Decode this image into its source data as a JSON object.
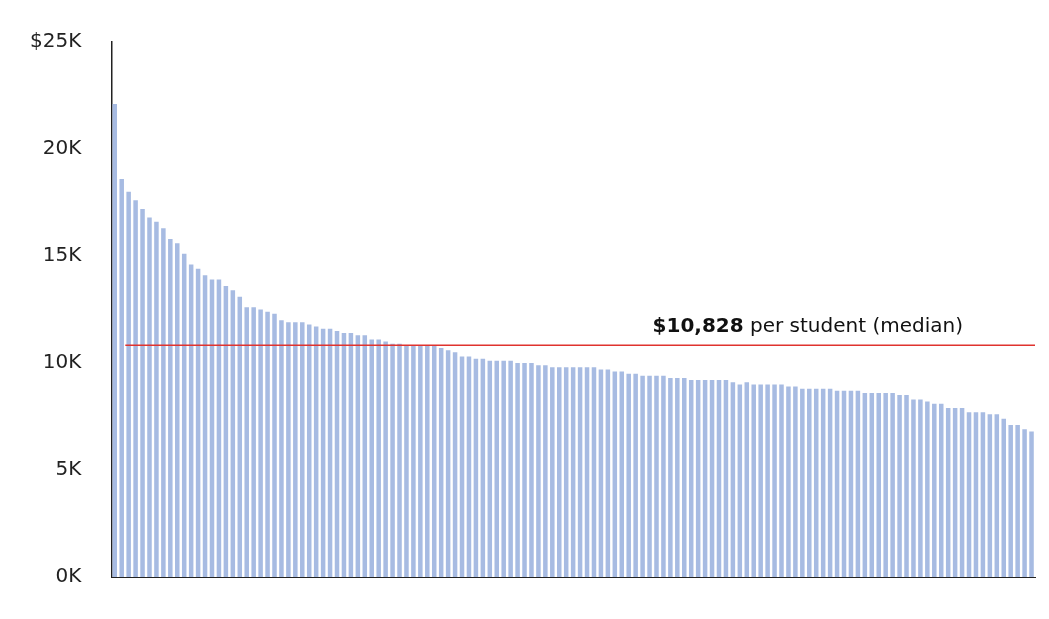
{
  "chart_data": {
    "type": "bar",
    "categories": [
      null,
      null,
      null,
      null,
      null,
      null,
      null,
      null,
      null,
      null,
      null,
      null,
      null,
      null,
      null,
      null,
      null,
      null,
      null,
      null,
      null,
      null,
      null,
      null,
      null,
      null,
      null,
      null,
      null,
      null,
      null,
      null,
      null,
      null,
      null,
      null,
      null,
      null,
      null,
      null,
      null,
      null,
      null,
      null,
      null,
      null,
      null,
      null,
      null,
      null,
      null,
      null,
      null,
      null,
      null,
      null,
      null,
      null,
      null,
      null,
      null,
      null,
      null,
      null,
      null,
      null,
      null,
      null,
      null,
      null,
      null,
      null,
      null,
      null,
      null,
      null,
      null,
      null,
      null,
      null,
      null,
      null,
      null,
      null,
      null,
      null,
      null,
      null,
      null,
      null,
      null,
      null,
      null,
      null,
      null,
      null,
      null,
      null,
      null,
      null,
      null,
      null,
      null,
      null,
      null,
      null,
      null,
      null,
      null,
      null,
      null,
      null,
      null,
      null,
      null,
      null,
      null,
      null,
      null,
      null,
      null,
      null,
      null,
      null,
      null,
      null,
      null,
      null,
      null,
      null,
      null,
      null,
      null
    ],
    "values": [
      22.1,
      18.6,
      18.0,
      17.6,
      17.2,
      16.8,
      16.6,
      16.3,
      15.8,
      15.6,
      15.1,
      14.6,
      14.4,
      14.1,
      13.9,
      13.9,
      13.6,
      13.4,
      13.1,
      12.6,
      12.6,
      12.5,
      12.4,
      12.3,
      12.0,
      11.9,
      11.9,
      11.9,
      11.8,
      11.7,
      11.6,
      11.6,
      11.5,
      11.4,
      11.4,
      11.3,
      11.3,
      11.1,
      11.1,
      11.0,
      10.9,
      10.9,
      10.8,
      10.8,
      10.8,
      10.8,
      10.8,
      10.7,
      10.6,
      10.5,
      10.3,
      10.3,
      10.2,
      10.2,
      10.1,
      10.1,
      10.1,
      10.1,
      10.0,
      10.0,
      10.0,
      9.9,
      9.9,
      9.8,
      9.8,
      9.8,
      9.8,
      9.8,
      9.8,
      9.8,
      9.7,
      9.7,
      9.6,
      9.6,
      9.5,
      9.5,
      9.4,
      9.4,
      9.4,
      9.4,
      9.3,
      9.3,
      9.3,
      9.2,
      9.2,
      9.2,
      9.2,
      9.2,
      9.2,
      9.1,
      9.0,
      9.1,
      9.0,
      9.0,
      9.0,
      9.0,
      9.0,
      8.9,
      8.9,
      8.8,
      8.8,
      8.8,
      8.8,
      8.8,
      8.7,
      8.7,
      8.7,
      8.7,
      8.6,
      8.6,
      8.6,
      8.6,
      8.6,
      8.5,
      8.5,
      8.3,
      8.3,
      8.2,
      8.1,
      8.1,
      7.9,
      7.9,
      7.9,
      7.7,
      7.7,
      7.7,
      7.6,
      7.6,
      7.4,
      7.1,
      7.1,
      6.9,
      6.8
    ],
    "color": "#a7bbe2",
    "ylim": [
      0,
      25
    ],
    "yticks": [
      {
        "value": 0,
        "label": "0K"
      },
      {
        "value": 5,
        "label": "5K"
      },
      {
        "value": 10,
        "label": "10K"
      },
      {
        "value": 15,
        "label": "15K"
      },
      {
        "value": 20,
        "label": "20K"
      },
      {
        "value": 25,
        "label": "$25K"
      }
    ],
    "ref_lines": [
      {
        "axis": "y",
        "value": 10.828,
        "label": "$10,828 per student (median)",
        "color": "#e0332e"
      }
    ]
  }
}
